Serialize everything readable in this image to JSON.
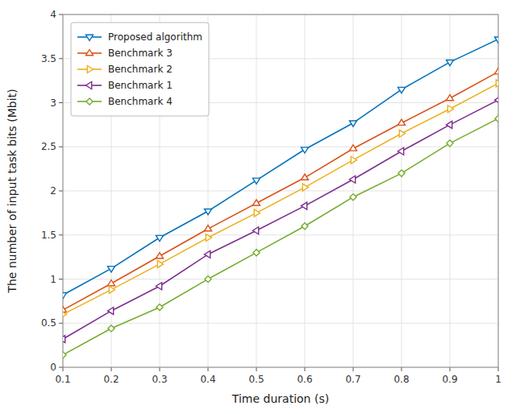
{
  "chart_data": {
    "type": "line",
    "xlabel": "Time duration (s)",
    "ylabel": "The number of input task bits (Mbit)",
    "x": [
      0.1,
      0.2,
      0.3,
      0.4,
      0.5,
      0.6,
      0.7,
      0.8,
      0.9,
      1.0
    ],
    "series": [
      {
        "name": "Proposed algorithm",
        "color": "#0072BD",
        "marker": "triangle-down",
        "values": [
          0.82,
          1.12,
          1.47,
          1.77,
          2.12,
          2.47,
          2.77,
          3.15,
          3.46,
          3.72
        ]
      },
      {
        "name": "Benchmark 3",
        "color": "#D95319",
        "marker": "triangle-up",
        "values": [
          0.65,
          0.95,
          1.26,
          1.57,
          1.86,
          2.15,
          2.48,
          2.77,
          3.05,
          3.35
        ]
      },
      {
        "name": "Benchmark 2",
        "color": "#EDB120",
        "marker": "triangle-right",
        "values": [
          0.6,
          0.88,
          1.17,
          1.47,
          1.75,
          2.04,
          2.35,
          2.65,
          2.93,
          3.22
        ]
      },
      {
        "name": "Benchmark 1",
        "color": "#7E2F8E",
        "marker": "triangle-left",
        "values": [
          0.32,
          0.64,
          0.92,
          1.28,
          1.55,
          1.83,
          2.13,
          2.45,
          2.75,
          3.03
        ]
      },
      {
        "name": "Benchmark 4",
        "color": "#77AC30",
        "marker": "diamond",
        "values": [
          0.14,
          0.44,
          0.68,
          1.0,
          1.3,
          1.6,
          1.93,
          2.2,
          2.54,
          2.82
        ]
      }
    ],
    "xlim": [
      0.1,
      1.0
    ],
    "ylim": [
      0,
      4
    ],
    "xticks": [
      0.1,
      0.2,
      0.3,
      0.4,
      0.5,
      0.6,
      0.7,
      0.8,
      0.9,
      1
    ],
    "yticks": [
      0,
      0.5,
      1,
      1.5,
      2,
      2.5,
      3,
      3.5,
      4
    ],
    "grid": true,
    "legend": "upper left"
  }
}
